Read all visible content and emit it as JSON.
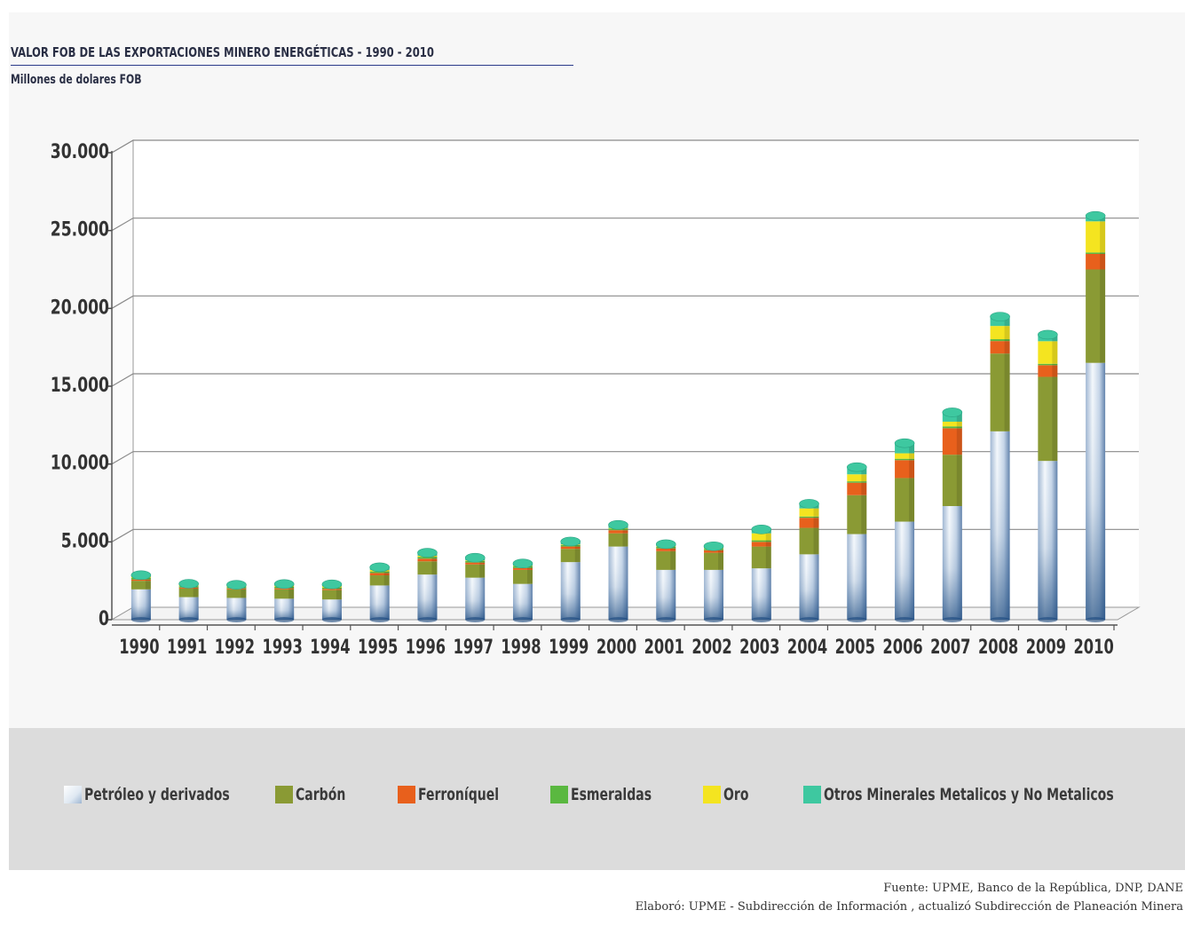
{
  "title": "VALOR FOB DE LAS EXPORTACIONES MINERO ENERGÉTICAS - 1990 - 2010",
  "subtitle": "Millones de dolares FOB",
  "source_line1": "Fuente: UPME, Banco de la República, DNP, DANE",
  "source_line2": "Elaboró: UPME - Subdirección de Información , actualizó Subdirección de Planeación Minera",
  "chart_data": {
    "type": "bar",
    "stacked": true,
    "title": "VALOR FOB DE LAS EXPORTACIONES MINERO ENERGÉTICAS - 1990 - 2010",
    "ylabel": "Millones de dolares FOB",
    "ylim": [
      0,
      30000
    ],
    "yticks": [
      0,
      5000,
      10000,
      15000,
      20000,
      25000,
      30000
    ],
    "ytick_labels": [
      "0",
      "5.000",
      "10.000",
      "15.000",
      "20.000",
      "25.000",
      "30.000"
    ],
    "grid": true,
    "legend_position": "bottom",
    "categories": [
      "1990",
      "1991",
      "1992",
      "1993",
      "1994",
      "1995",
      "1996",
      "1997",
      "1998",
      "1999",
      "2000",
      "2001",
      "2002",
      "2003",
      "2004",
      "2005",
      "2006",
      "2007",
      "2008",
      "2009",
      "2010"
    ],
    "series": [
      {
        "name": "Petróleo y derivados",
        "color": "#c9d8ea",
        "values": [
          1950,
          1450,
          1400,
          1350,
          1300,
          2200,
          2900,
          2700,
          2300,
          3700,
          4700,
          3200,
          3200,
          3300,
          4200,
          5500,
          6300,
          7300,
          12100,
          10200,
          16500
        ]
      },
      {
        "name": "Carbón",
        "color": "#8a9a34",
        "values": [
          550,
          550,
          550,
          600,
          600,
          650,
          850,
          850,
          900,
          850,
          850,
          1200,
          1100,
          1400,
          1700,
          2500,
          2800,
          3300,
          5000,
          5400,
          6000
        ]
      },
      {
        "name": "Ferroníquel",
        "color": "#e8601c",
        "values": [
          80,
          60,
          60,
          70,
          80,
          150,
          170,
          120,
          120,
          150,
          200,
          180,
          160,
          300,
          650,
          800,
          1150,
          1700,
          800,
          750,
          1000
        ]
      },
      {
        "name": "Esmeraldas",
        "color": "#5ab840",
        "values": [
          100,
          90,
          90,
          90,
          80,
          100,
          120,
          100,
          100,
          100,
          100,
          100,
          90,
          100,
          80,
          90,
          90,
          120,
          120,
          90,
          90
        ]
      },
      {
        "name": "Oro",
        "color": "#f4e420",
        "values": [
          100,
          80,
          60,
          90,
          100,
          100,
          70,
          40,
          40,
          40,
          40,
          40,
          40,
          450,
          520,
          450,
          350,
          300,
          850,
          1450,
          2000
        ]
      },
      {
        "name": "Otros Minerales Metalicos y No Metalicos",
        "color": "#3ec8a0",
        "values": [
          80,
          80,
          80,
          90,
          110,
          170,
          190,
          170,
          150,
          180,
          200,
          130,
          130,
          250,
          300,
          460,
          650,
          600,
          600,
          420,
          350
        ]
      }
    ]
  },
  "legend": [
    {
      "label": "Petróleo y derivados",
      "color": "#c9d8ea"
    },
    {
      "label": "Carbón",
      "color": "#8a9a34"
    },
    {
      "label": "Ferroníquel",
      "color": "#e8601c"
    },
    {
      "label": "Esmeraldas",
      "color": "#5ab840"
    },
    {
      "label": "Oro",
      "color": "#f4e420"
    },
    {
      "label": "Otros Minerales Metalicos y No Metalicos",
      "color": "#3ec8a0"
    }
  ]
}
